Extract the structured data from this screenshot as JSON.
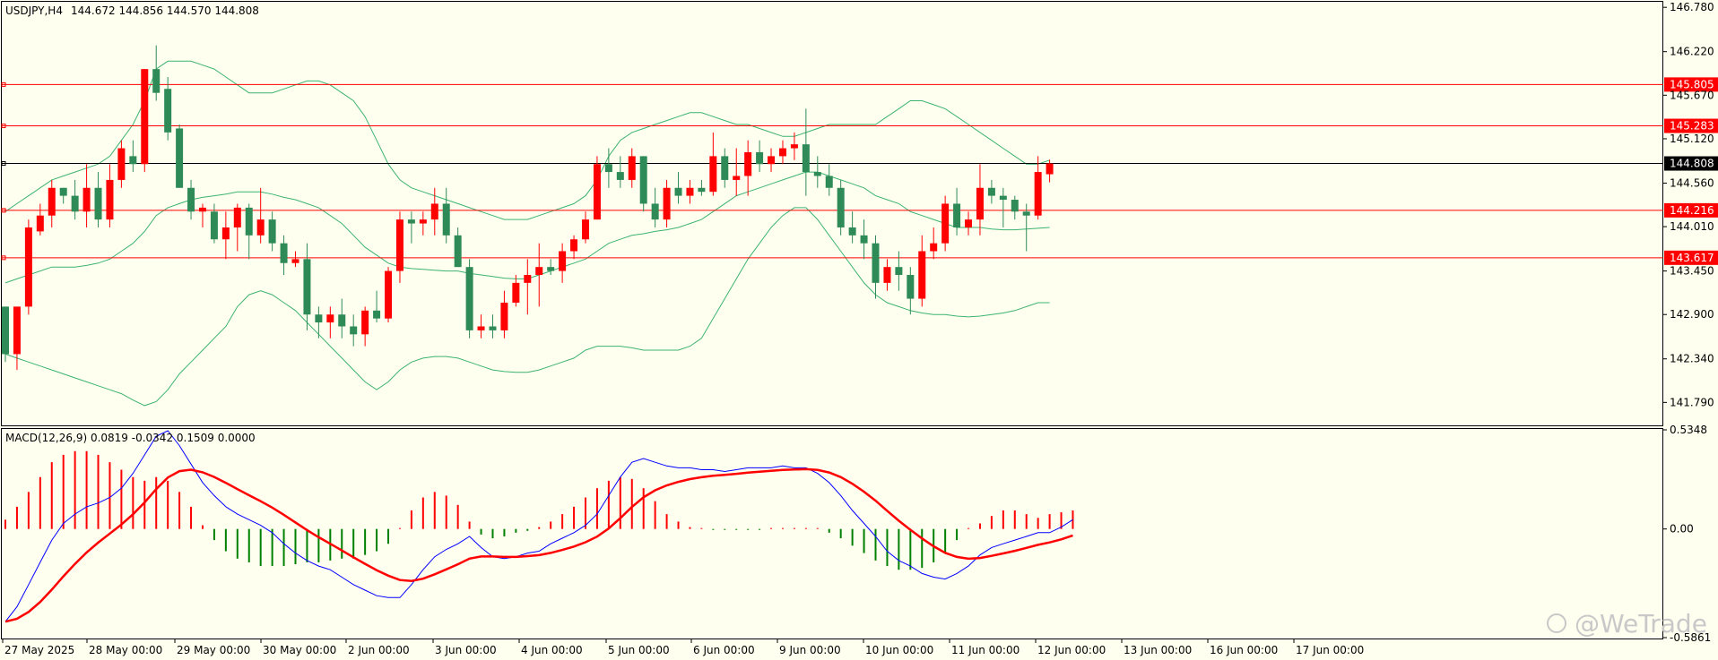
{
  "header": {
    "symbol": "USDJPY,H4",
    "ohlc": "144.672 144.856 144.570 144.808"
  },
  "macd": {
    "label": "MACD(12,26,9) 0.0819 -0.0342 0.1509 0.0000",
    "ticks": [
      "0.5348",
      "0.00",
      "-0.5861"
    ],
    "histogram_color": "#ff0000",
    "histogram_neg_color": "#008000",
    "macd_color": "#0000ff",
    "signal_color": "#ff0000"
  },
  "watermark": "@WeTrade",
  "colors": {
    "background": "#fffff0",
    "bull": "#ff0000",
    "bear": "#2e8b57",
    "bands": "#3cb371",
    "level_line": "#ff0000",
    "current_line": "#000000"
  },
  "chart_data": {
    "type": "candlestick",
    "ylim": [
      141.5,
      146.85
    ],
    "y_ticks": [
      "146.780",
      "146.220",
      "145.670",
      "145.120",
      "144.560",
      "144.010",
      "143.450",
      "142.900",
      "142.340",
      "141.790"
    ],
    "levels": [
      {
        "value": "145.805",
        "color": "#ff0000"
      },
      {
        "value": "145.283",
        "color": "#ff0000"
      },
      {
        "value": "144.808",
        "color": "#000000"
      },
      {
        "value": "144.216",
        "color": "#ff0000"
      },
      {
        "value": "143.617",
        "color": "#ff0000"
      }
    ],
    "x_labels": [
      "27 May 2025",
      "28 May 00:00",
      "29 May 00:00",
      "30 May 00:00",
      "2 Jun 00:00",
      "3 Jun 00:00",
      "4 Jun 00:00",
      "5 Jun 00:00",
      "6 Jun 00:00",
      "9 Jun 00:00",
      "10 Jun 00:00",
      "11 Jun 00:00",
      "12 Jun 00:00",
      "13 Jun 00:00",
      "16 Jun 00:00",
      "17 Jun 00:00"
    ],
    "candles": [
      [
        143.0,
        143.0,
        142.3,
        142.4
      ],
      [
        142.4,
        143.0,
        142.2,
        143.0
      ],
      [
        143.0,
        144.1,
        142.9,
        144.0
      ],
      [
        143.95,
        144.3,
        143.9,
        144.15
      ],
      [
        144.15,
        144.6,
        144.0,
        144.5
      ],
      [
        144.5,
        144.5,
        144.3,
        144.4
      ],
      [
        144.4,
        144.6,
        144.1,
        144.2
      ],
      [
        144.2,
        144.8,
        144.0,
        144.5
      ],
      [
        144.5,
        144.7,
        144.0,
        144.1
      ],
      [
        144.1,
        144.8,
        144.0,
        144.6
      ],
      [
        144.6,
        145.1,
        144.5,
        145.0
      ],
      [
        144.9,
        145.1,
        144.7,
        144.8
      ],
      [
        144.8,
        146.0,
        144.7,
        146.0
      ],
      [
        146.0,
        146.3,
        145.6,
        145.7
      ],
      [
        145.75,
        145.9,
        145.1,
        145.2
      ],
      [
        145.25,
        145.3,
        144.5,
        144.5
      ],
      [
        144.5,
        144.6,
        144.1,
        144.2
      ],
      [
        144.2,
        144.3,
        144.0,
        144.25
      ],
      [
        144.2,
        144.3,
        143.8,
        143.85
      ],
      [
        143.85,
        144.2,
        143.6,
        144.0
      ],
      [
        144.0,
        144.3,
        143.7,
        144.25
      ],
      [
        144.25,
        144.3,
        143.6,
        143.9
      ],
      [
        143.9,
        144.5,
        143.8,
        144.1
      ],
      [
        144.1,
        144.2,
        143.7,
        143.8
      ],
      [
        143.8,
        143.9,
        143.4,
        143.55
      ],
      [
        143.55,
        143.7,
        143.5,
        143.6
      ],
      [
        143.6,
        143.8,
        142.7,
        142.9
      ],
      [
        142.9,
        143.0,
        142.6,
        142.8
      ],
      [
        142.8,
        143.0,
        142.6,
        142.9
      ],
      [
        142.9,
        143.1,
        142.6,
        142.75
      ],
      [
        142.75,
        142.9,
        142.5,
        142.65
      ],
      [
        142.65,
        143.0,
        142.5,
        142.95
      ],
      [
        142.95,
        143.2,
        142.8,
        142.85
      ],
      [
        142.85,
        143.5,
        142.8,
        143.45
      ],
      [
        143.45,
        144.2,
        143.3,
        144.1
      ],
      [
        144.1,
        144.2,
        143.8,
        144.05
      ],
      [
        144.05,
        144.2,
        143.9,
        144.1
      ],
      [
        144.1,
        144.5,
        143.9,
        144.3
      ],
      [
        144.3,
        144.5,
        143.8,
        143.9
      ],
      [
        143.9,
        144.0,
        143.5,
        143.5
      ],
      [
        143.5,
        143.6,
        142.6,
        142.7
      ],
      [
        142.7,
        142.9,
        142.6,
        142.75
      ],
      [
        142.75,
        142.9,
        142.6,
        142.7
      ],
      [
        142.7,
        143.2,
        142.6,
        143.05
      ],
      [
        143.05,
        143.4,
        143.0,
        143.3
      ],
      [
        143.3,
        143.6,
        142.9,
        143.4
      ],
      [
        143.4,
        143.8,
        143.0,
        143.5
      ],
      [
        143.5,
        143.6,
        143.4,
        143.45
      ],
      [
        143.45,
        143.8,
        143.3,
        143.7
      ],
      [
        143.7,
        143.9,
        143.6,
        143.85
      ],
      [
        143.85,
        144.2,
        143.8,
        144.1
      ],
      [
        144.1,
        144.9,
        144.1,
        144.8
      ],
      [
        144.8,
        145.0,
        144.5,
        144.7
      ],
      [
        144.7,
        144.9,
        144.5,
        144.6
      ],
      [
        144.6,
        145.0,
        144.5,
        144.9
      ],
      [
        144.9,
        144.9,
        144.2,
        144.3
      ],
      [
        144.3,
        144.5,
        144.0,
        144.1
      ],
      [
        144.1,
        144.6,
        144.0,
        144.5
      ],
      [
        144.5,
        144.7,
        144.3,
        144.4
      ],
      [
        144.4,
        144.6,
        144.3,
        144.5
      ],
      [
        144.5,
        144.6,
        144.4,
        144.45
      ],
      [
        144.45,
        145.2,
        144.4,
        144.9
      ],
      [
        144.9,
        145.0,
        144.5,
        144.6
      ],
      [
        144.6,
        145.0,
        144.4,
        144.65
      ],
      [
        144.65,
        145.1,
        144.4,
        144.95
      ],
      [
        144.95,
        145.1,
        144.7,
        144.8
      ],
      [
        144.8,
        145.0,
        144.7,
        144.9
      ],
      [
        144.9,
        145.1,
        144.8,
        145.0
      ],
      [
        145.0,
        145.2,
        144.85,
        145.05
      ],
      [
        145.05,
        145.5,
        144.4,
        144.7
      ],
      [
        144.7,
        144.9,
        144.5,
        144.65
      ],
      [
        144.65,
        144.8,
        144.4,
        144.5
      ],
      [
        144.5,
        144.6,
        143.9,
        144.0
      ],
      [
        144.0,
        144.2,
        143.8,
        143.9
      ],
      [
        143.9,
        144.1,
        143.6,
        143.8
      ],
      [
        143.8,
        143.9,
        143.1,
        143.3
      ],
      [
        143.3,
        143.6,
        143.2,
        143.5
      ],
      [
        143.5,
        143.7,
        143.2,
        143.4
      ],
      [
        143.4,
        143.5,
        142.9,
        143.1
      ],
      [
        143.1,
        143.9,
        143.0,
        143.7
      ],
      [
        143.7,
        144.0,
        143.6,
        143.8
      ],
      [
        143.8,
        144.4,
        143.7,
        144.3
      ],
      [
        144.3,
        144.5,
        143.9,
        144.0
      ],
      [
        144.0,
        144.2,
        143.9,
        144.1
      ],
      [
        144.1,
        144.8,
        143.9,
        144.5
      ],
      [
        144.5,
        144.6,
        144.3,
        144.4
      ],
      [
        144.4,
        144.5,
        144.0,
        144.35
      ],
      [
        144.35,
        144.4,
        144.1,
        144.2
      ],
      [
        144.2,
        144.3,
        143.7,
        144.15
      ],
      [
        144.15,
        144.9,
        144.1,
        144.7
      ],
      [
        144.672,
        144.856,
        144.57,
        144.808
      ]
    ],
    "bands_upper": [
      144.2,
      144.3,
      144.4,
      144.5,
      144.6,
      144.65,
      144.7,
      144.75,
      144.8,
      144.9,
      145.1,
      145.3,
      145.6,
      146.0,
      146.1,
      146.1,
      146.1,
      146.05,
      146.0,
      145.9,
      145.8,
      145.7,
      145.7,
      145.7,
      145.75,
      145.8,
      145.85,
      145.85,
      145.8,
      145.7,
      145.6,
      145.4,
      145.1,
      144.8,
      144.6,
      144.5,
      144.45,
      144.4,
      144.35,
      144.3,
      144.25,
      144.2,
      144.15,
      144.1,
      144.1,
      144.1,
      144.15,
      144.2,
      144.25,
      144.3,
      144.4,
      144.6,
      144.9,
      145.1,
      145.2,
      145.25,
      145.3,
      145.35,
      145.4,
      145.45,
      145.45,
      145.4,
      145.35,
      145.3,
      145.3,
      145.25,
      145.2,
      145.15,
      145.15,
      145.2,
      145.25,
      145.3,
      145.3,
      145.3,
      145.3,
      145.3,
      145.4,
      145.5,
      145.6,
      145.6,
      145.55,
      145.5,
      145.4,
      145.3,
      145.2,
      145.1,
      145.0,
      144.9,
      144.8,
      144.8,
      144.85
    ],
    "bands_mid": [
      143.3,
      143.35,
      143.4,
      143.45,
      143.5,
      143.5,
      143.5,
      143.52,
      143.55,
      143.6,
      143.7,
      143.8,
      143.95,
      144.15,
      144.25,
      144.3,
      144.35,
      144.38,
      144.4,
      144.42,
      144.45,
      144.45,
      144.45,
      144.42,
      144.38,
      144.35,
      144.3,
      144.25,
      144.15,
      144.05,
      143.9,
      143.75,
      143.65,
      143.55,
      143.5,
      143.48,
      143.47,
      143.46,
      143.45,
      143.45,
      143.42,
      143.4,
      143.38,
      143.36,
      143.35,
      143.35,
      143.4,
      143.45,
      143.5,
      143.55,
      143.6,
      143.7,
      143.8,
      143.85,
      143.9,
      143.92,
      143.95,
      143.97,
      144.0,
      144.05,
      144.1,
      144.2,
      144.3,
      144.4,
      144.45,
      144.5,
      144.55,
      144.6,
      144.65,
      144.7,
      144.7,
      144.65,
      144.6,
      144.55,
      144.5,
      144.4,
      144.35,
      144.3,
      144.2,
      144.15,
      144.1,
      144.05,
      144.0,
      144.0,
      144.0,
      143.98,
      143.97,
      143.97,
      143.98,
      143.99,
      144.0
    ],
    "bands_lower": [
      142.4,
      142.35,
      142.3,
      142.25,
      142.2,
      142.15,
      142.1,
      142.05,
      142.0,
      141.95,
      141.9,
      141.82,
      141.75,
      141.8,
      141.95,
      142.15,
      142.3,
      142.45,
      142.6,
      142.75,
      143.0,
      143.15,
      143.2,
      143.15,
      143.05,
      142.95,
      142.8,
      142.65,
      142.5,
      142.35,
      142.2,
      142.05,
      141.95,
      142.05,
      142.2,
      142.3,
      142.35,
      142.37,
      142.37,
      142.35,
      142.3,
      142.25,
      142.2,
      142.18,
      142.17,
      142.17,
      142.2,
      142.25,
      142.3,
      142.35,
      142.45,
      142.5,
      142.5,
      142.5,
      142.48,
      142.45,
      142.45,
      142.45,
      142.45,
      142.5,
      142.6,
      142.85,
      143.1,
      143.35,
      143.6,
      143.8,
      144.0,
      144.15,
      144.25,
      144.25,
      144.1,
      143.9,
      143.7,
      143.5,
      143.3,
      143.15,
      143.05,
      143.0,
      142.95,
      142.92,
      142.9,
      142.9,
      142.88,
      142.87,
      142.88,
      142.9,
      142.92,
      142.95,
      143.0,
      143.05,
      143.05
    ],
    "macd_ylim": [
      -0.5861,
      0.5348
    ],
    "macd_hist": [
      0.05,
      0.12,
      0.2,
      0.28,
      0.36,
      0.4,
      0.42,
      0.42,
      0.4,
      0.36,
      0.32,
      0.28,
      0.26,
      0.28,
      0.26,
      0.2,
      0.12,
      0.02,
      -0.06,
      -0.12,
      -0.16,
      -0.18,
      -0.2,
      -0.2,
      -0.2,
      -0.19,
      -0.18,
      -0.18,
      -0.17,
      -0.16,
      -0.16,
      -0.14,
      -0.12,
      -0.08,
      0.0,
      0.1,
      0.17,
      0.2,
      0.18,
      0.13,
      0.04,
      -0.03,
      -0.05,
      -0.04,
      -0.02,
      -0.01,
      0.01,
      0.04,
      0.08,
      0.12,
      0.17,
      0.22,
      0.26,
      0.28,
      0.27,
      0.22,
      0.15,
      0.08,
      0.04,
      0.01,
      0.0,
      -0.005,
      -0.005,
      -0.005,
      -0.005,
      -0.005,
      0.005,
      0.005,
      0.005,
      0.005,
      0.0,
      -0.02,
      -0.05,
      -0.09,
      -0.13,
      -0.17,
      -0.2,
      -0.22,
      -0.22,
      -0.21,
      -0.18,
      -0.13,
      -0.06,
      0.0,
      0.03,
      0.07,
      0.1,
      0.1,
      0.08,
      0.06,
      0.08,
      0.09,
      0.1
    ],
    "macd_line": [
      -0.5,
      -0.42,
      -0.3,
      -0.18,
      -0.06,
      0.03,
      0.08,
      0.12,
      0.14,
      0.17,
      0.22,
      0.3,
      0.4,
      0.5,
      0.53,
      0.45,
      0.35,
      0.25,
      0.18,
      0.12,
      0.08,
      0.05,
      0.02,
      -0.02,
      -0.08,
      -0.13,
      -0.17,
      -0.2,
      -0.22,
      -0.26,
      -0.3,
      -0.33,
      -0.36,
      -0.37,
      -0.37,
      -0.3,
      -0.22,
      -0.15,
      -0.11,
      -0.08,
      -0.04,
      -0.1,
      -0.15,
      -0.16,
      -0.15,
      -0.13,
      -0.12,
      -0.08,
      -0.05,
      -0.02,
      0.02,
      0.08,
      0.18,
      0.28,
      0.36,
      0.38,
      0.36,
      0.34,
      0.33,
      0.33,
      0.32,
      0.32,
      0.31,
      0.32,
      0.33,
      0.33,
      0.33,
      0.34,
      0.33,
      0.33,
      0.3,
      0.25,
      0.18,
      0.1,
      0.03,
      -0.04,
      -0.12,
      -0.17,
      -0.2,
      -0.24,
      -0.26,
      -0.27,
      -0.24,
      -0.2,
      -0.14,
      -0.1,
      -0.08,
      -0.06,
      -0.04,
      -0.02,
      -0.02,
      0.01,
      0.05
    ]
  }
}
